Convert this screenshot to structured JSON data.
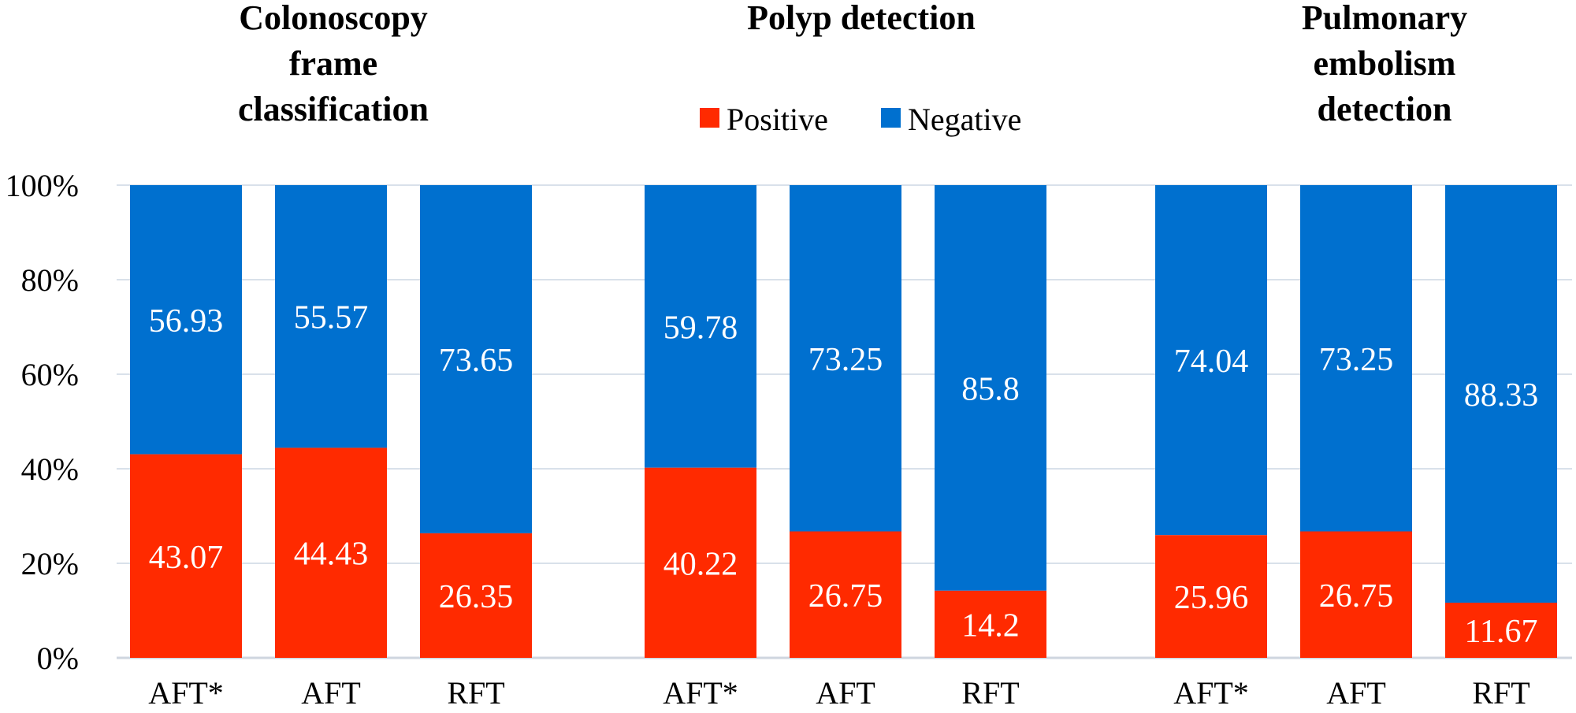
{
  "chart_data": {
    "type": "bar",
    "stacked": true,
    "percent": true,
    "ylim": [
      0,
      100
    ],
    "yticks": [
      "0%",
      "20%",
      "40%",
      "60%",
      "80%",
      "100%"
    ],
    "grid": true,
    "legend_position": "top-center",
    "colors": {
      "Positive": "#ff2a00",
      "Negative": "#0070cf"
    },
    "legend": [
      "Positive",
      "Negative"
    ],
    "groups": [
      {
        "title": "Colonoscopy\nframe\nclassification",
        "categories": [
          "AFT*",
          "AFT",
          "RFT"
        ],
        "positive": [
          43.07,
          44.43,
          26.35
        ],
        "negative": [
          56.93,
          55.57,
          73.65
        ]
      },
      {
        "title": "Polyp detection",
        "categories": [
          "AFT*",
          "AFT",
          "RFT"
        ],
        "positive": [
          40.22,
          26.75,
          14.2
        ],
        "negative": [
          59.78,
          73.25,
          85.8
        ]
      },
      {
        "title": "Pulmonary\nembolism\ndetection",
        "categories": [
          "AFT*",
          "AFT",
          "RFT"
        ],
        "positive": [
          25.96,
          26.75,
          11.67
        ],
        "negative": [
          74.04,
          73.25,
          88.33
        ]
      }
    ]
  }
}
